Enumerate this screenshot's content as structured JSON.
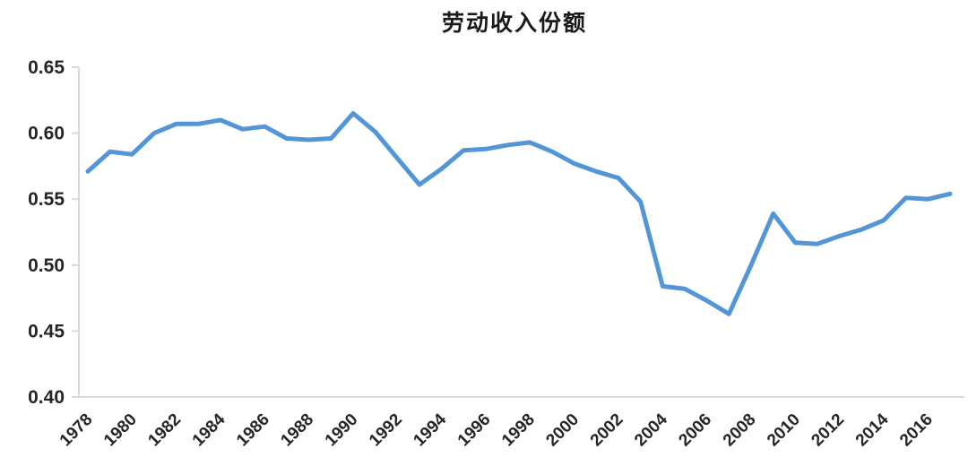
{
  "title": "劳动收入份额",
  "colors": {
    "line": "#5296d7",
    "axis": "#d9d9d9",
    "tick_label": "#262626",
    "title": "#1a1a1a",
    "background": "#ffffff"
  },
  "chart_data": {
    "type": "line",
    "title": "劳动收入份额",
    "series_name": "劳动收入份额",
    "x": [
      1978,
      1979,
      1980,
      1981,
      1982,
      1983,
      1984,
      1985,
      1986,
      1987,
      1988,
      1989,
      1990,
      1991,
      1992,
      1993,
      1994,
      1995,
      1996,
      1997,
      1998,
      1999,
      2000,
      2001,
      2002,
      2003,
      2004,
      2005,
      2006,
      2007,
      2008,
      2009,
      2010,
      2011,
      2012,
      2013,
      2014,
      2015,
      2016,
      2017
    ],
    "values": [
      0.571,
      0.586,
      0.584,
      0.6,
      0.607,
      0.607,
      0.61,
      0.603,
      0.605,
      0.596,
      0.595,
      0.596,
      0.615,
      0.601,
      0.581,
      0.561,
      0.573,
      0.587,
      0.588,
      0.591,
      0.593,
      0.586,
      0.577,
      0.571,
      0.566,
      0.548,
      0.484,
      0.482,
      0.473,
      0.463,
      0.5,
      0.539,
      0.517,
      0.516,
      0.522,
      0.527,
      0.534,
      0.551,
      0.55,
      0.554
    ],
    "xlabel": "",
    "ylabel": "",
    "ylim": [
      0.4,
      0.65
    ],
    "ytick_step": 0.05,
    "ytick_labels": [
      "0.65",
      "0.60",
      "0.55",
      "0.50",
      "0.45",
      "0.40"
    ],
    "xtick_labels": [
      "1978",
      "1980",
      "1982",
      "1984",
      "1986",
      "1988",
      "1990",
      "1992",
      "1994",
      "1996",
      "1998",
      "2000",
      "2002",
      "2004",
      "2006",
      "2008",
      "2010",
      "2012",
      "2014",
      "2016"
    ],
    "grid": false,
    "legend": false,
    "line_width": 5
  }
}
